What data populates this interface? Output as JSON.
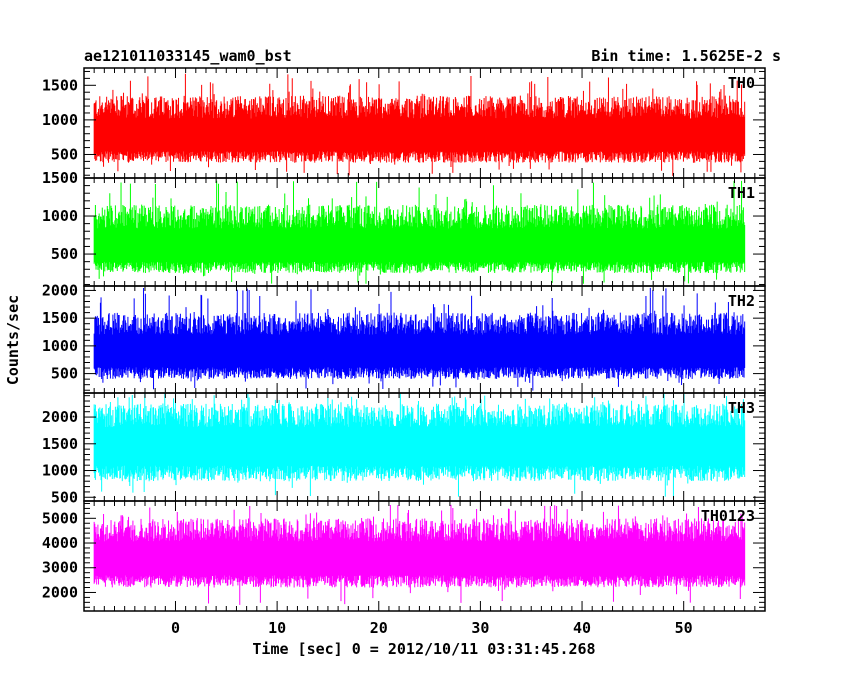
{
  "header": {
    "title": "ae121011033145_wam0_bst",
    "bin_time": "Bin time: 1.5625E-2 s"
  },
  "chart_data": {
    "type": "line",
    "title": "ae121011033145_wam0_bst",
    "subtitle": "Bin time: 1.5625E-2 s",
    "xlabel": "Time [sec] 0 = 2012/10/11 03:31:45.268",
    "ylabel": "Counts/sec",
    "xlim": [
      -9,
      58
    ],
    "x_range": [
      -8,
      56
    ],
    "x_ticks": [
      "0",
      "10",
      "20",
      "30",
      "40",
      "50"
    ],
    "colors": {
      "TH0": "#ff0000",
      "TH1": "#00ff00",
      "TH2": "#0000ff",
      "TH3": "#00ffff",
      "TH0123": "#ff00ff"
    },
    "panels": [
      {
        "name": "TH0",
        "ylim": [
          160,
          1750
        ],
        "y_ticks": [
          "500",
          "1000",
          "1500"
        ],
        "mean": 750,
        "low_typical": 380,
        "high_typical": 1350,
        "max_peak": 1680,
        "min_dip": 180
      },
      {
        "name": "TH1",
        "ylim": [
          80,
          1500
        ],
        "y_ticks": [
          "500",
          "1000",
          "1500"
        ],
        "mean": 580,
        "low_typical": 250,
        "high_typical": 1150,
        "max_peak": 1470,
        "min_dip": 100
      },
      {
        "name": "TH2",
        "ylim": [
          150,
          2080
        ],
        "y_ticks": [
          "500",
          "1000",
          "1500",
          "2000"
        ],
        "mean": 880,
        "low_typical": 400,
        "high_typical": 1600,
        "max_peak": 2050,
        "min_dip": 180
      },
      {
        "name": "TH3",
        "ylim": [
          430,
          2450
        ],
        "y_ticks": [
          "500",
          "1000",
          "1500",
          "2000"
        ],
        "mean": 1450,
        "low_typical": 800,
        "high_typical": 2250,
        "max_peak": 2450,
        "min_dip": 450
      },
      {
        "name": "TH0123",
        "ylim": [
          1250,
          5700
        ],
        "y_ticks": [
          "2000",
          "3000",
          "4000",
          "5000"
        ],
        "mean": 3300,
        "low_typical": 2200,
        "high_typical": 5000,
        "max_peak": 5550,
        "min_dip": 1450
      }
    ]
  }
}
